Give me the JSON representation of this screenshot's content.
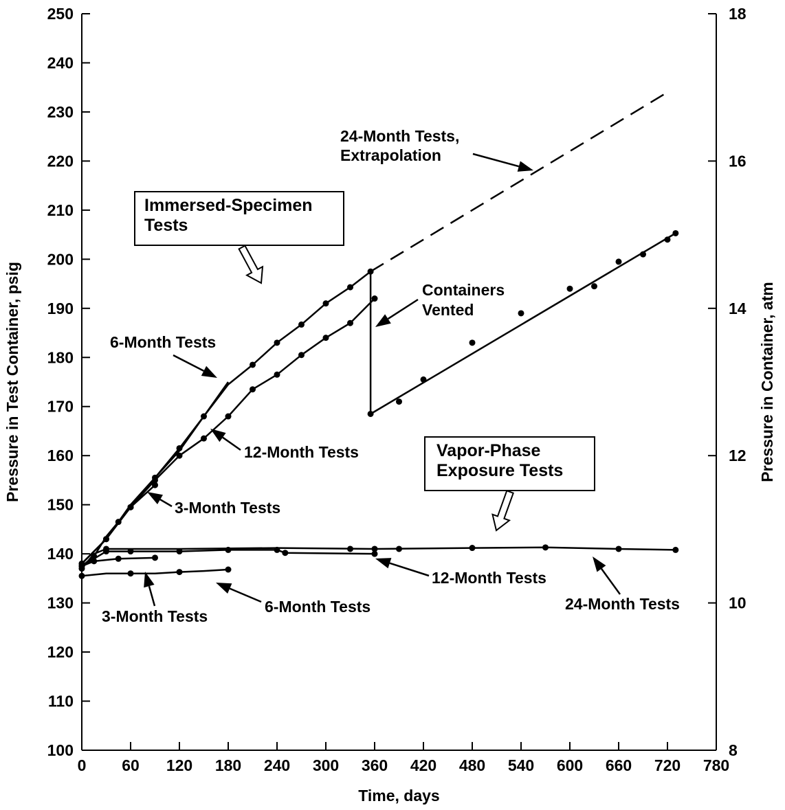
{
  "chart_data": {
    "type": "line",
    "xlabel": "Time, days",
    "ylabel": "Pressure in Test Container, psig",
    "y2label": "Pressure in Container, atm",
    "xlim": [
      0,
      780
    ],
    "ylim": [
      100,
      250
    ],
    "y2lim": [
      8,
      18
    ],
    "x_ticks": [
      0,
      60,
      120,
      180,
      240,
      300,
      360,
      420,
      480,
      540,
      600,
      660,
      720,
      780
    ],
    "y_ticks": [
      100,
      110,
      120,
      130,
      140,
      150,
      160,
      170,
      180,
      190,
      200,
      210,
      220,
      230,
      240,
      250
    ],
    "y2_ticks": [
      8,
      10,
      12,
      14,
      16,
      18
    ],
    "grid": false,
    "series": [
      {
        "group": "immersed",
        "line": [
          [
            0,
            138
          ],
          [
            30,
            143
          ],
          [
            60,
            150
          ],
          [
            90,
            155.5
          ],
          [
            120,
            161
          ],
          [
            150,
            168
          ],
          [
            180,
            175
          ]
        ],
        "points": []
      },
      {
        "group": "immersed",
        "line": [
          [
            0,
            137.5
          ],
          [
            15,
            139.5
          ],
          [
            30,
            143.5
          ],
          [
            60,
            149.5
          ],
          [
            90,
            154
          ]
        ],
        "points": [
          [
            60,
            149.5
          ],
          [
            90,
            154
          ]
        ]
      },
      {
        "group": "immersed",
        "line": [
          [
            0,
            138
          ],
          [
            30,
            143
          ],
          [
            60,
            149.5
          ],
          [
            90,
            155
          ],
          [
            120,
            160
          ],
          [
            150,
            163.5
          ],
          [
            180,
            168
          ],
          [
            210,
            173.5
          ],
          [
            240,
            176.5
          ],
          [
            270,
            180.5
          ],
          [
            300,
            184
          ],
          [
            330,
            187
          ],
          [
            360,
            192
          ]
        ],
        "points": [
          [
            0,
            138
          ],
          [
            30,
            143
          ],
          [
            60,
            149.5
          ],
          [
            90,
            155
          ],
          [
            120,
            160
          ],
          [
            150,
            163.5
          ],
          [
            180,
            168
          ],
          [
            210,
            173.5
          ],
          [
            240,
            176.5
          ],
          [
            270,
            180.5
          ],
          [
            300,
            184
          ],
          [
            330,
            187
          ],
          [
            360,
            192
          ]
        ]
      },
      {
        "group": "immersed",
        "line": [
          [
            0,
            138
          ],
          [
            30,
            143
          ],
          [
            45,
            146.5
          ],
          [
            60,
            149.5
          ],
          [
            90,
            155.5
          ],
          [
            120,
            161.5
          ],
          [
            150,
            168
          ],
          [
            180,
            174.5
          ],
          [
            210,
            178.5
          ],
          [
            240,
            183
          ],
          [
            270,
            186.7
          ],
          [
            300,
            191
          ],
          [
            330,
            194.3
          ],
          [
            355,
            197.5
          ]
        ],
        "points": [
          [
            0,
            138
          ],
          [
            30,
            143
          ],
          [
            45,
            146.5
          ],
          [
            60,
            149.5
          ],
          [
            90,
            155.5
          ],
          [
            120,
            161.5
          ],
          [
            150,
            168
          ],
          [
            210,
            178.5
          ],
          [
            240,
            183
          ],
          [
            270,
            186.7
          ],
          [
            300,
            191
          ],
          [
            330,
            194.3
          ],
          [
            355,
            197.5
          ]
        ],
        "extrapolation": [
          [
            355,
            197.5
          ],
          [
            720,
            234
          ]
        ],
        "vent_line": [
          [
            355,
            197.5
          ],
          [
            355,
            168.5
          ]
        ],
        "after_vent": [
          [
            355,
            168.5
          ],
          [
            730,
            205.3
          ]
        ],
        "after_vent_points": [
          [
            355,
            168.5
          ],
          [
            390,
            171
          ],
          [
            420,
            175.5
          ],
          [
            480,
            183
          ],
          [
            540,
            189
          ],
          [
            600,
            194
          ],
          [
            630,
            194.5
          ],
          [
            660,
            199.5
          ],
          [
            690,
            201
          ],
          [
            720,
            204
          ],
          [
            730,
            205.3
          ]
        ]
      },
      {
        "group": "vapor",
        "line": [
          [
            0,
            135.5
          ],
          [
            30,
            136
          ],
          [
            60,
            136
          ],
          [
            90,
            136
          ],
          [
            120,
            136.3
          ],
          [
            150,
            136.5
          ],
          [
            180,
            136.8
          ]
        ],
        "points": [
          [
            0,
            135.5
          ],
          [
            60,
            136
          ],
          [
            120,
            136.3
          ],
          [
            180,
            136.8
          ]
        ]
      },
      {
        "group": "vapor",
        "line": [
          [
            0,
            137.5
          ],
          [
            15,
            138.5
          ],
          [
            45,
            139
          ],
          [
            90,
            139.2
          ]
        ],
        "points": [
          [
            0,
            137.5
          ],
          [
            15,
            138.5
          ],
          [
            45,
            139
          ],
          [
            90,
            139.2
          ]
        ]
      },
      {
        "group": "vapor",
        "line": [
          [
            0,
            137.5
          ],
          [
            30,
            140.5
          ],
          [
            60,
            140.5
          ],
          [
            120,
            140.5
          ],
          [
            180,
            140.8
          ],
          [
            240,
            140.8
          ],
          [
            250,
            140.2
          ],
          [
            360,
            140
          ]
        ],
        "points": [
          [
            0,
            137.5
          ],
          [
            15,
            139.5
          ],
          [
            30,
            140.5
          ],
          [
            60,
            140.5
          ],
          [
            120,
            140.5
          ],
          [
            180,
            140.8
          ],
          [
            240,
            140.8
          ],
          [
            250,
            140.2
          ],
          [
            360,
            140
          ]
        ]
      },
      {
        "group": "vapor",
        "line": [
          [
            0,
            137
          ],
          [
            15,
            140
          ],
          [
            30,
            141
          ],
          [
            120,
            141
          ],
          [
            240,
            141.2
          ],
          [
            360,
            141
          ],
          [
            480,
            141.2
          ],
          [
            570,
            141.3
          ],
          [
            660,
            141
          ],
          [
            730,
            140.8
          ]
        ],
        "points": [
          [
            0,
            137
          ],
          [
            30,
            141
          ],
          [
            330,
            141
          ],
          [
            360,
            141
          ],
          [
            390,
            141
          ],
          [
            480,
            141.2
          ],
          [
            570,
            141.3
          ],
          [
            660,
            141
          ],
          [
            730,
            140.8
          ]
        ]
      }
    ],
    "boxes": [
      {
        "lines": [
          "Immersed-Specimen",
          "Tests"
        ]
      },
      {
        "lines": [
          "Vapor-Phase",
          "Exposure Tests"
        ]
      }
    ],
    "annotations": [
      {
        "lines": [
          "24-Month Tests,",
          "Extrapolation"
        ]
      },
      {
        "lines": [
          "Containers",
          "Vented"
        ]
      },
      {
        "lines": [
          "6-Month Tests"
        ]
      },
      {
        "lines": [
          "12-Month Tests"
        ]
      },
      {
        "lines": [
          "3-Month Tests"
        ]
      },
      {
        "lines": [
          "12-Month Tests"
        ]
      },
      {
        "lines": [
          "3-Month Tests"
        ]
      },
      {
        "lines": [
          "6-Month Tests"
        ]
      },
      {
        "lines": [
          "24-Month Tests"
        ]
      }
    ]
  }
}
